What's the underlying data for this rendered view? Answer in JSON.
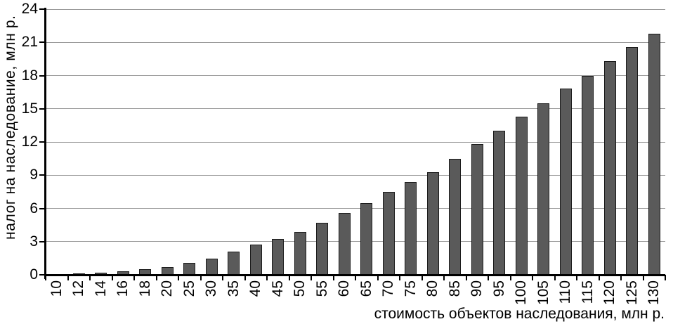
{
  "chart_data": {
    "type": "bar",
    "title": "",
    "xlabel": "стоимость объектов наследования, млн р.",
    "ylabel": "налог на наследование, млн р.",
    "categories": [
      "10",
      "12",
      "14",
      "16",
      "18",
      "20",
      "25",
      "30",
      "35",
      "40",
      "45",
      "50",
      "55",
      "60",
      "65",
      "70",
      "75",
      "80",
      "85",
      "90",
      "95",
      "100",
      "105",
      "110",
      "115",
      "120",
      "125",
      "130"
    ],
    "values": [
      0,
      0.1,
      0.2,
      0.3,
      0.5,
      0.7,
      1.1,
      1.45,
      2.1,
      2.7,
      3.25,
      3.9,
      4.7,
      5.6,
      6.5,
      7.5,
      8.35,
      9.3,
      10.5,
      11.8,
      13.0,
      14.3,
      15.5,
      16.8,
      18.0,
      19.3,
      20.6,
      21.8
    ],
    "yticks": [
      0,
      3,
      6,
      9,
      12,
      15,
      18,
      21,
      24
    ],
    "ylim": [
      0,
      24
    ],
    "grid": "horizontal",
    "legend": "none",
    "colors": {
      "bar_fill": "#5a5a5a",
      "bar_border": "#1a1a1a",
      "gridline": "#999999",
      "axis": "#000000",
      "background": "#ffffff"
    }
  }
}
